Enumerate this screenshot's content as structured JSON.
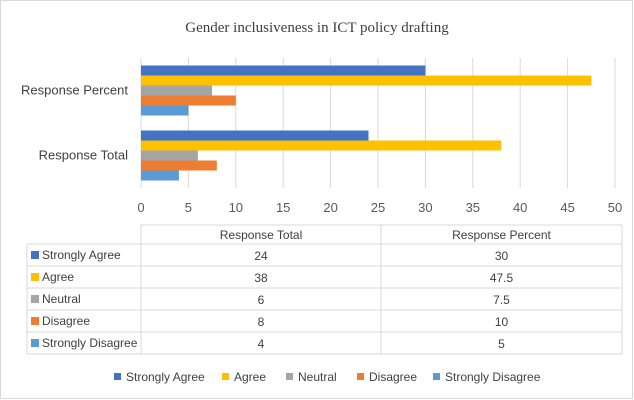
{
  "chart_data": {
    "type": "bar",
    "orientation": "horizontal",
    "title": "Gender inclusiveness in ICT policy drafting",
    "categories": [
      "Response Total",
      "Response Percent"
    ],
    "series": [
      {
        "name": "Strongly Agree",
        "color": "#4472C4",
        "values": [
          24,
          30
        ]
      },
      {
        "name": "Agree",
        "color": "#FFC000",
        "values": [
          38,
          47.5
        ]
      },
      {
        "name": "Neutral",
        "color": "#A5A5A5",
        "values": [
          6,
          7.5
        ]
      },
      {
        "name": "Disagree",
        "color": "#ED7D31",
        "values": [
          8,
          10
        ]
      },
      {
        "name": "Strongly Disagree",
        "color": "#5B9BD5",
        "values": [
          4,
          5
        ]
      }
    ],
    "xlim": [
      0,
      50
    ],
    "xticks": [
      0,
      5,
      10,
      15,
      20,
      25,
      30,
      35,
      40,
      45,
      50
    ],
    "gridlines": true,
    "data_table": {
      "columns": [
        "Response Total",
        "Response Percent"
      ],
      "rows": [
        {
          "name": "Strongly Agree",
          "values": [
            "24",
            "30"
          ]
        },
        {
          "name": "Agree",
          "values": [
            "38",
            "47.5"
          ]
        },
        {
          "name": "Neutral",
          "values": [
            "6",
            "7.5"
          ]
        },
        {
          "name": "Disagree",
          "values": [
            "8",
            "10"
          ]
        },
        {
          "name": "Strongly Disagree",
          "values": [
            "4",
            "5"
          ]
        }
      ]
    },
    "legend_position": "bottom"
  }
}
